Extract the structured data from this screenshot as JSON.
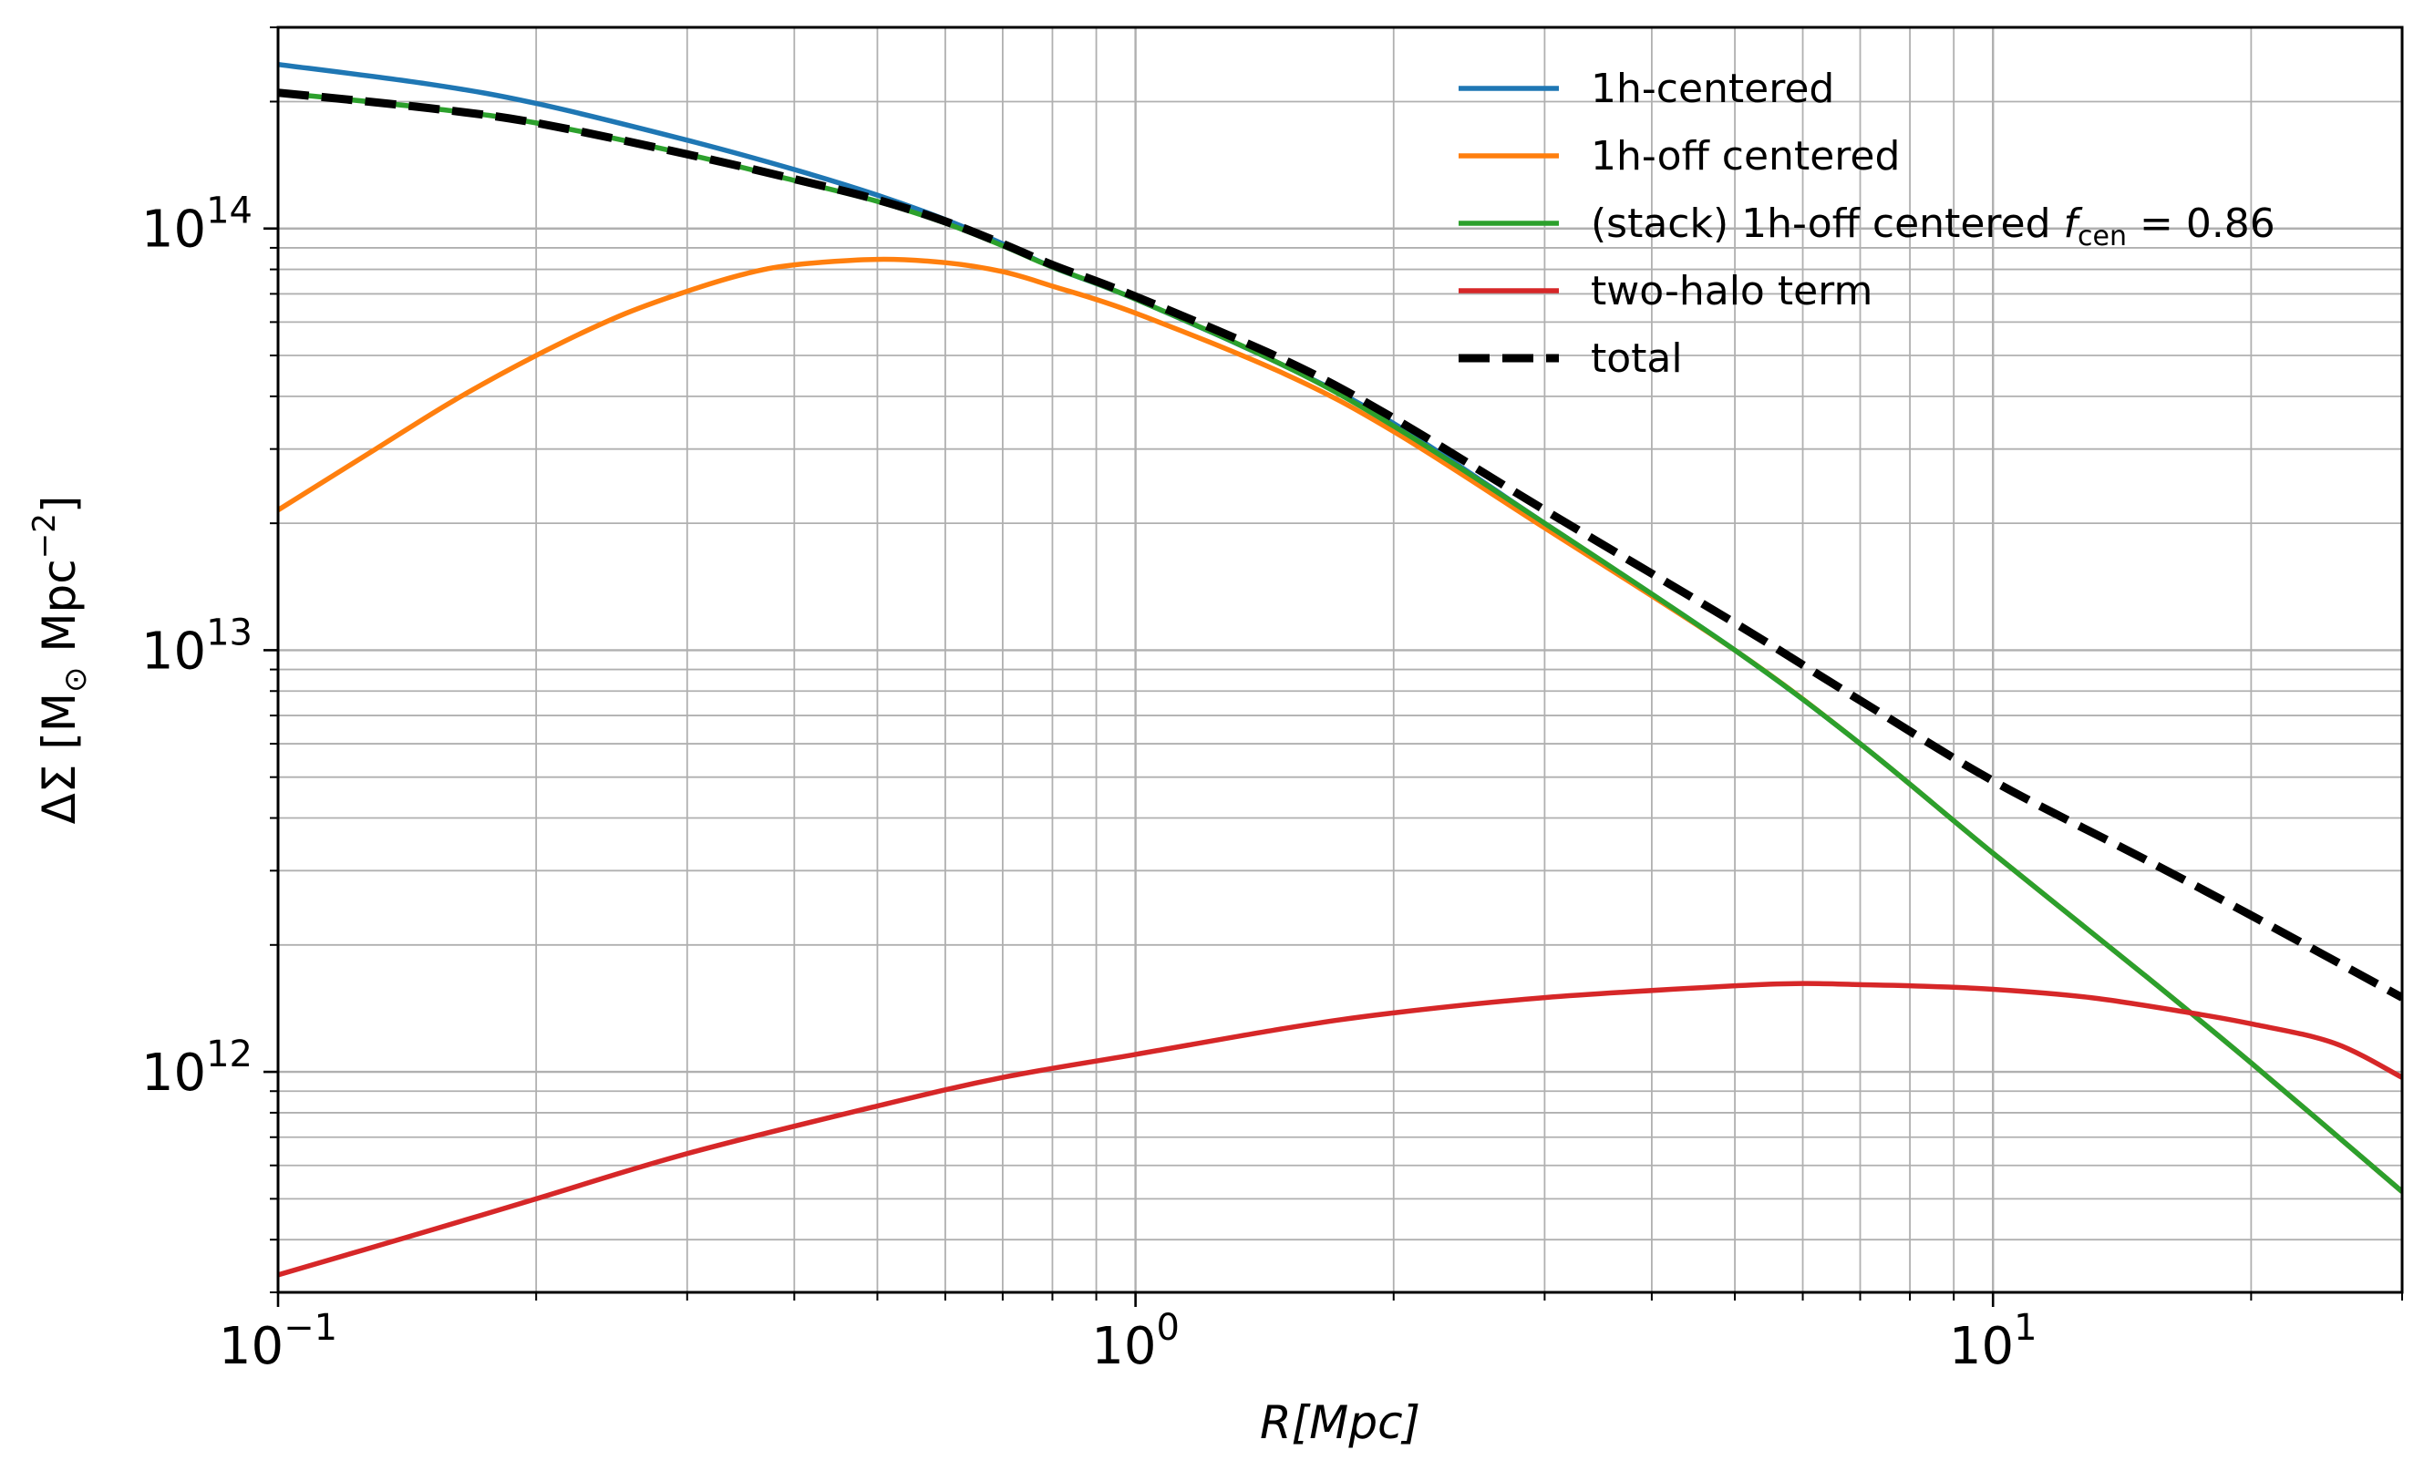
{
  "chart_data": {
    "type": "line",
    "xscale": "log",
    "yscale": "log",
    "xlim": [
      0.1,
      30
    ],
    "ylim": [
      300000000000.0,
      300000000000000.0
    ],
    "grid": "major and minor",
    "legend_position": "top-right",
    "xlabel": "R[Mpc]",
    "ylabel_main": "ΔΣ [M",
    "ylabel_sub": "⊙",
    "ylabel_rest": " Mpc",
    "ylabel_sup": "−2",
    "ylabel_end": "]",
    "x_ticks": [
      {
        "value": 0.1,
        "base": "10",
        "exp": "−1"
      },
      {
        "value": 1,
        "base": "10",
        "exp": "0"
      },
      {
        "value": 10,
        "base": "10",
        "exp": "1"
      }
    ],
    "y_ticks": [
      {
        "value": 1000000000000.0,
        "base": "10",
        "exp": "12"
      },
      {
        "value": 10000000000000.0,
        "base": "10",
        "exp": "13"
      },
      {
        "value": 100000000000000.0,
        "base": "10",
        "exp": "14"
      }
    ],
    "series": [
      {
        "name": "1h-centered",
        "color": "#1f77b4",
        "dash": "solid",
        "points": [
          [
            0.1,
            245000000000000.0
          ],
          [
            0.15,
            220000000000000.0
          ],
          [
            0.2,
            198000000000000.0
          ],
          [
            0.3,
            162000000000000.0
          ],
          [
            0.4,
            138000000000000.0
          ],
          [
            0.5,
            120000000000000.0
          ],
          [
            0.6,
            105000000000000.0
          ],
          [
            0.7,
            92000000000000.0
          ],
          [
            0.8,
            81000000000000.0
          ],
          [
            1.0,
            68000000000000.0
          ],
          [
            1.5,
            47000000000000.0
          ],
          [
            2.0,
            34500000000000.0
          ],
          [
            3.0,
            20000000000000.0
          ],
          [
            5.0,
            10000000000000.0
          ],
          [
            7.0,
            6000000000000.0
          ],
          [
            10.0,
            3300000000000.0
          ],
          [
            15.0,
            1700000000000.0
          ],
          [
            20.0,
            1050000000000.0
          ],
          [
            30.0,
            520000000000.0
          ]
        ]
      },
      {
        "name": "1h-off centered",
        "color": "#ff7f0e",
        "dash": "solid",
        "points": [
          [
            0.1,
            21500000000000.0
          ],
          [
            0.13,
            30000000000000.0
          ],
          [
            0.16,
            39000000000000.0
          ],
          [
            0.2,
            50000000000000.0
          ],
          [
            0.25,
            62000000000000.0
          ],
          [
            0.3,
            71000000000000.0
          ],
          [
            0.35,
            78000000000000.0
          ],
          [
            0.4,
            82000000000000.0
          ],
          [
            0.5,
            84500000000000.0
          ],
          [
            0.6,
            83000000000000.0
          ],
          [
            0.7,
            79000000000000.0
          ],
          [
            0.8,
            73000000000000.0
          ],
          [
            1.0,
            63000000000000.0
          ],
          [
            1.5,
            45000000000000.0
          ],
          [
            2.0,
            33000000000000.0
          ],
          [
            3.0,
            19500000000000.0
          ],
          [
            5.0,
            10000000000000.0
          ],
          [
            7.0,
            6000000000000.0
          ],
          [
            10.0,
            3300000000000.0
          ],
          [
            15.0,
            1700000000000.0
          ],
          [
            20.0,
            1050000000000.0
          ],
          [
            30.0,
            520000000000.0
          ]
        ]
      },
      {
        "name": "(stack) 1h-off centered f_cen = 0.86",
        "label_prefix": "(stack) 1h-off centered ",
        "label_f": "f",
        "label_sub": "cen",
        "label_suffix": " = 0.86",
        "color": "#2ca02c",
        "dash": "solid",
        "points": [
          [
            0.1,
            210000000000000.0
          ],
          [
            0.15,
            193000000000000.0
          ],
          [
            0.2,
            178000000000000.0
          ],
          [
            0.3,
            150000000000000.0
          ],
          [
            0.4,
            130000000000000.0
          ],
          [
            0.5,
            116000000000000.0
          ],
          [
            0.6,
            103000000000000.0
          ],
          [
            0.7,
            91000000000000.0
          ],
          [
            0.8,
            81000000000000.0
          ],
          [
            1.0,
            68000000000000.0
          ],
          [
            1.5,
            47000000000000.0
          ],
          [
            2.0,
            34000000000000.0
          ],
          [
            3.0,
            20000000000000.0
          ],
          [
            5.0,
            10000000000000.0
          ],
          [
            7.0,
            6000000000000.0
          ],
          [
            10.0,
            3300000000000.0
          ],
          [
            15.0,
            1700000000000.0
          ],
          [
            20.0,
            1050000000000.0
          ],
          [
            30.0,
            520000000000.0
          ]
        ]
      },
      {
        "name": "two-halo term",
        "color": "#d62728",
        "dash": "solid",
        "points": [
          [
            0.1,
            330000000000.0
          ],
          [
            0.15,
            420000000000.0
          ],
          [
            0.2,
            500000000000.0
          ],
          [
            0.3,
            640000000000.0
          ],
          [
            0.5,
            830000000000.0
          ],
          [
            0.7,
            970000000000.0
          ],
          [
            1.0,
            1100000000000.0
          ],
          [
            1.5,
            1270000000000.0
          ],
          [
            2.0,
            1380000000000.0
          ],
          [
            3.0,
            1500000000000.0
          ],
          [
            5.0,
            1600000000000.0
          ],
          [
            6.0,
            1620000000000.0
          ],
          [
            7.0,
            1610000000000.0
          ],
          [
            8.0,
            1600000000000.0
          ],
          [
            10.0,
            1570000000000.0
          ],
          [
            13.0,
            1500000000000.0
          ],
          [
            17.0,
            1380000000000.0
          ],
          [
            20.0,
            1300000000000.0
          ],
          [
            25.0,
            1170000000000.0
          ],
          [
            30.0,
            970000000000.0
          ]
        ]
      },
      {
        "name": "total",
        "color": "#000000",
        "dash": "dashed",
        "points": [
          [
            0.1,
            210000000000000.0
          ],
          [
            0.15,
            193000000000000.0
          ],
          [
            0.2,
            178000000000000.0
          ],
          [
            0.3,
            150000000000000.0
          ],
          [
            0.4,
            131000000000000.0
          ],
          [
            0.5,
            117000000000000.0
          ],
          [
            0.6,
            104000000000000.0
          ],
          [
            0.7,
            92000000000000.0
          ],
          [
            0.8,
            82000000000000.0
          ],
          [
            1.0,
            69000000000000.0
          ],
          [
            1.5,
            48500000000000.0
          ],
          [
            2.0,
            35500000000000.0
          ],
          [
            3.0,
            21500000000000.0
          ],
          [
            5.0,
            11600000000000.0
          ],
          [
            7.0,
            7600000000000.0
          ],
          [
            10.0,
            4900000000000.0
          ],
          [
            15.0,
            3200000000000.0
          ],
          [
            20.0,
            2350000000000.0
          ],
          [
            30.0,
            1500000000000.0
          ]
        ]
      }
    ]
  }
}
